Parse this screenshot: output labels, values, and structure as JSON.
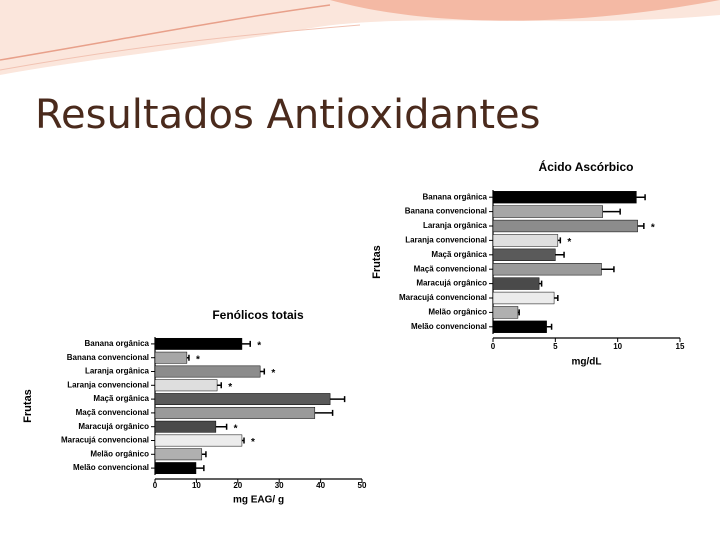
{
  "slide_title": "Resultados Antioxidantes",
  "chart_data": [
    {
      "type": "bar",
      "orientation": "horizontal",
      "title": "Ácido Ascórbico",
      "x_label": "mg/dL",
      "y_label": "Frutas",
      "categories": [
        "Banana orgânica",
        "Banana convencional",
        "Laranja orgânica",
        "Laranja convencional",
        "Maçã orgânica",
        "Maçã convencional",
        "Maracujá orgânico",
        "Maracujá convencional",
        "Melão orgânico",
        "Melão convencional"
      ],
      "values": [
        11.5,
        8.8,
        11.6,
        5.2,
        5.0,
        8.7,
        3.7,
        4.9,
        2.0,
        4.3
      ],
      "errors": [
        0.7,
        1.4,
        0.5,
        0.2,
        0.7,
        1.0,
        0.2,
        0.3,
        0.1,
        0.4
      ],
      "significance": [
        null,
        null,
        "*",
        "*",
        null,
        null,
        null,
        null,
        null,
        null
      ],
      "colors": [
        "#000000",
        "#a6a6a6",
        "#8c8c8c",
        "#dedede",
        "#5a5a5a",
        "#9a9a9a",
        "#4a4a4a",
        "#ececec",
        "#b0b0b0",
        "#000000"
      ],
      "xlim": [
        0,
        15
      ],
      "xticks": [
        0,
        5,
        10,
        15
      ]
    },
    {
      "type": "bar",
      "orientation": "horizontal",
      "title": "Fenólicos totais",
      "x_label": "mg EAG/ g",
      "y_label": "Frutas",
      "categories": [
        "Banana orgânica",
        "Banana convencional",
        "Laranja orgânica",
        "Laranja convencional",
        "Maçã orgânica",
        "Maçã convencional",
        "Maracujá orgânico",
        "Maracujá convencional",
        "Melão orgânico",
        "Melão convencional"
      ],
      "values": [
        21,
        7.7,
        25.4,
        15,
        42.3,
        38.6,
        14.7,
        21,
        11.3,
        9.9
      ],
      "errors": [
        2,
        0.5,
        1,
        1,
        3.5,
        4.3,
        2.6,
        0.5,
        1,
        1.9
      ],
      "significance": [
        "*",
        "*",
        "*",
        "*",
        null,
        null,
        "*",
        "*",
        null,
        null
      ],
      "colors": [
        "#000000",
        "#a6a6a6",
        "#8c8c8c",
        "#dedede",
        "#5a5a5a",
        "#9a9a9a",
        "#4a4a4a",
        "#ececec",
        "#b0b0b0",
        "#000000"
      ],
      "xlim": [
        0,
        50
      ],
      "xticks": [
        0,
        10,
        20,
        30,
        40,
        50
      ]
    }
  ]
}
